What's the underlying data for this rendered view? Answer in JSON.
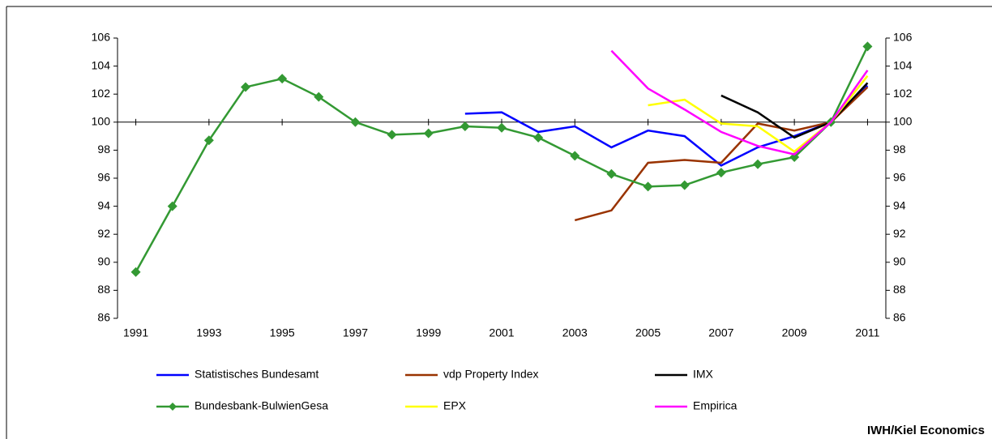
{
  "chart_data": {
    "type": "line",
    "x": [
      1991,
      1992,
      1993,
      1994,
      1995,
      1996,
      1997,
      1998,
      1999,
      2000,
      2001,
      2002,
      2003,
      2004,
      2005,
      2006,
      2007,
      2008,
      2009,
      2010,
      2011
    ],
    "xlim": [
      1990.5,
      2011.5
    ],
    "xticks": [
      1991,
      1993,
      1995,
      1997,
      1999,
      2001,
      2003,
      2005,
      2007,
      2009,
      2011
    ],
    "ylim": [
      86,
      106
    ],
    "yticks": [
      86,
      88,
      90,
      92,
      94,
      96,
      98,
      100,
      102,
      104,
      106
    ],
    "y2lim": [
      86,
      106
    ],
    "y2ticks": [
      86,
      88,
      90,
      92,
      94,
      96,
      98,
      100,
      102,
      104,
      106
    ],
    "x_axis_crosses": 100,
    "grid": false,
    "series": [
      {
        "name": "Statistisches Bundesamt",
        "color": "#0000ff",
        "marker": false,
        "values": [
          null,
          null,
          null,
          null,
          null,
          null,
          null,
          null,
          null,
          100.6,
          100.7,
          99.3,
          99.7,
          98.2,
          99.4,
          99.0,
          96.9,
          98.2,
          99.0,
          100.0,
          102.6
        ]
      },
      {
        "name": "vdp Property Index",
        "color": "#993300",
        "marker": false,
        "values": [
          null,
          null,
          null,
          null,
          null,
          null,
          null,
          null,
          null,
          null,
          null,
          null,
          93.0,
          93.7,
          97.1,
          97.3,
          97.1,
          99.9,
          99.4,
          100.0,
          102.5
        ]
      },
      {
        "name": "IMX",
        "color": "#000000",
        "marker": false,
        "values": [
          null,
          null,
          null,
          null,
          null,
          null,
          null,
          null,
          null,
          null,
          null,
          null,
          null,
          null,
          null,
          null,
          101.9,
          100.7,
          98.9,
          100.0,
          102.8
        ]
      },
      {
        "name": "Bundesbank-BulwienGesa",
        "color": "#339933",
        "marker": true,
        "values": [
          89.3,
          94.0,
          98.7,
          102.5,
          103.1,
          101.8,
          100.0,
          99.1,
          99.2,
          99.7,
          99.6,
          98.9,
          97.6,
          96.3,
          95.4,
          95.5,
          96.4,
          97.0,
          97.5,
          100.0,
          105.4
        ]
      },
      {
        "name": "EPX",
        "color": "#ffff00",
        "marker": false,
        "values": [
          null,
          null,
          null,
          null,
          null,
          null,
          null,
          null,
          null,
          null,
          null,
          null,
          null,
          null,
          101.2,
          101.6,
          99.9,
          99.7,
          97.9,
          100.0,
          103.3
        ]
      },
      {
        "name": "Empirica",
        "color": "#ff00ff",
        "marker": false,
        "values": [
          null,
          null,
          null,
          null,
          null,
          null,
          null,
          null,
          null,
          null,
          null,
          null,
          null,
          105.1,
          102.4,
          100.9,
          99.3,
          98.3,
          97.7,
          100.0,
          103.7
        ]
      }
    ],
    "source": "IWH/Kiel Economics"
  }
}
